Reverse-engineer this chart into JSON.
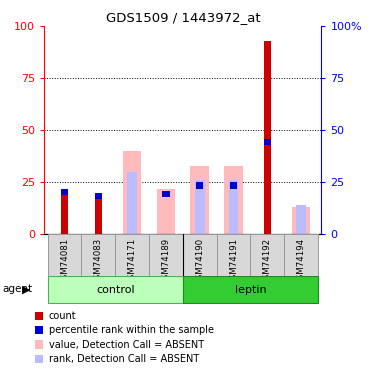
{
  "title": "GDS1509 / 1443972_at",
  "samples": [
    "GSM74081",
    "GSM74083",
    "GSM74171",
    "GSM74189",
    "GSM74190",
    "GSM74191",
    "GSM74192",
    "GSM74194"
  ],
  "count_values": [
    21,
    17,
    0,
    0,
    0,
    0,
    93,
    0
  ],
  "percentile_rank": [
    22,
    20,
    0,
    21,
    25,
    25,
    46,
    0
  ],
  "value_absent": [
    0,
    0,
    40,
    22,
    33,
    33,
    0,
    13
  ],
  "rank_absent": [
    0,
    0,
    30,
    0,
    26,
    26,
    0,
    14
  ],
  "count_color": "#cc0000",
  "percentile_color": "#0000cc",
  "value_absent_color": "#ffbbbb",
  "rank_absent_color": "#bbbbff",
  "yticks": [
    0,
    25,
    50,
    75,
    100
  ],
  "legend_items": [
    {
      "label": "count",
      "color": "#cc0000"
    },
    {
      "label": "percentile rank within the sample",
      "color": "#0000cc"
    },
    {
      "label": "value, Detection Call = ABSENT",
      "color": "#ffbbbb"
    },
    {
      "label": "rank, Detection Call = ABSENT",
      "color": "#bbbbff"
    }
  ]
}
